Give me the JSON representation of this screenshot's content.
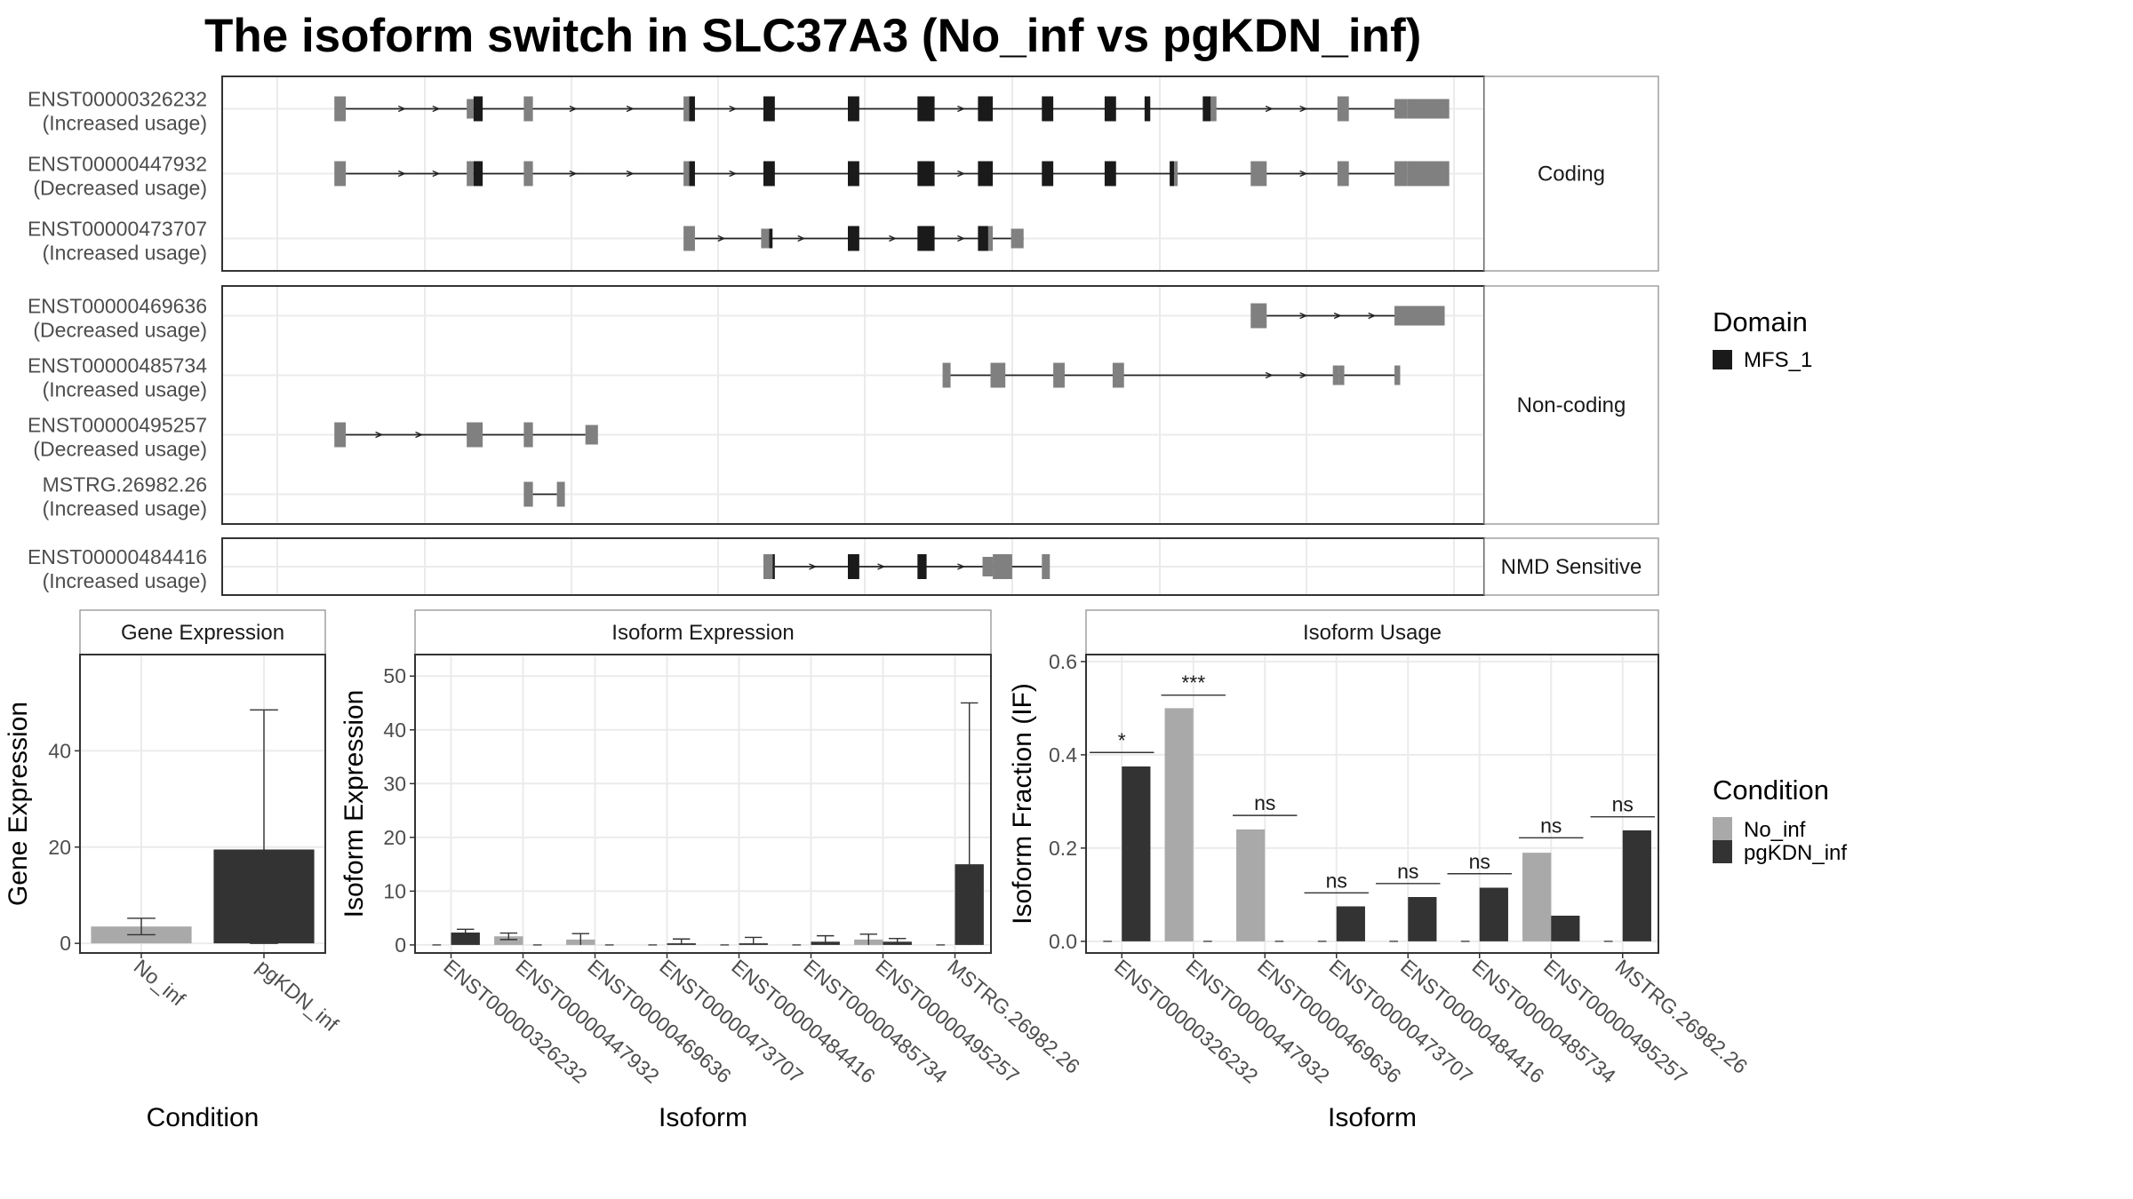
{
  "title": "The isoform switch in SLC37A3 (No_inf vs pgKDN_inf)",
  "colors": {
    "domain_mfs1": "#1a1a1a",
    "non_domain": "#808080",
    "no_inf": "#a9a9a9",
    "pgkdn_inf": "#333333",
    "grid": "#ebebeb",
    "panel_border": "#333333",
    "strip_fill": "#ffffff"
  },
  "structure": {
    "gene_span": [
      0,
      1000
    ],
    "groups": [
      {
        "label": "Coding",
        "isoforms": [
          {
            "name": "ENST00000326232",
            "usage": "(Increased usage)",
            "exons": [
              [
                50,
                60,
                "g"
              ],
              [
                166,
                172,
                "g"
              ],
              [
                172,
                180,
                "d"
              ],
              [
                216,
                224,
                "g"
              ],
              [
                356,
                361,
                "g"
              ],
              [
                361,
                366,
                "d"
              ],
              [
                426,
                436,
                "d"
              ],
              [
                500,
                510,
                "d"
              ],
              [
                561,
                576,
                "d"
              ],
              [
                614,
                627,
                "d"
              ],
              [
                670,
                680,
                "d"
              ],
              [
                725,
                735,
                "d"
              ],
              [
                760,
                765,
                "d"
              ],
              [
                811,
                818,
                "d"
              ],
              [
                818,
                823,
                "g"
              ],
              [
                929,
                939,
                "g"
              ],
              [
                979,
                990,
                "g"
              ],
              [
                990,
                1027,
                "g"
              ]
            ],
            "utr": [
              [
                166,
                172
              ],
              [
                979,
                1027
              ]
            ],
            "line": [
              60,
              990
            ],
            "arrows": [
              110,
              140,
              260,
              310,
              400,
              600,
              870,
              900
            ]
          },
          {
            "name": "ENST00000447932",
            "usage": "(Decreased usage)",
            "exons": [
              [
                50,
                60,
                "g"
              ],
              [
                166,
                172,
                "g"
              ],
              [
                172,
                180,
                "d"
              ],
              [
                216,
                224,
                "g"
              ],
              [
                356,
                361,
                "g"
              ],
              [
                361,
                366,
                "d"
              ],
              [
                426,
                436,
                "d"
              ],
              [
                500,
                510,
                "d"
              ],
              [
                561,
                576,
                "d"
              ],
              [
                614,
                627,
                "d"
              ],
              [
                670,
                680,
                "d"
              ],
              [
                725,
                735,
                "d"
              ],
              [
                782,
                786,
                "d"
              ],
              [
                786,
                789,
                "g"
              ],
              [
                853,
                867,
                "g"
              ],
              [
                929,
                939,
                "g"
              ],
              [
                979,
                990,
                "g"
              ],
              [
                990,
                1027,
                "g"
              ]
            ],
            "utr": [],
            "line": [
              60,
              990
            ],
            "arrows": [
              110,
              140,
              260,
              310,
              400,
              600,
              900
            ]
          },
          {
            "name": "ENST00000473707",
            "usage": "(Increased usage)",
            "exons": [
              [
                356,
                366,
                "g"
              ],
              [
                424,
                431,
                "g"
              ],
              [
                431,
                434,
                "d"
              ],
              [
                500,
                510,
                "d"
              ],
              [
                561,
                576,
                "d"
              ],
              [
                614,
                623,
                "d"
              ],
              [
                623,
                627,
                "g"
              ],
              [
                643,
                646,
                "g"
              ],
              [
                646,
                654,
                "g"
              ]
            ],
            "utr": [
              [
                424,
                434
              ],
              [
                643,
                654
              ]
            ],
            "line": [
              366,
              654
            ],
            "arrows": [
              390,
              460,
              540,
              600
            ]
          }
        ]
      },
      {
        "label": "Non-coding",
        "isoforms": [
          {
            "name": "ENST00000469636",
            "usage": "(Decreased usage)",
            "exons": [
              [
                853,
                867,
                "g"
              ],
              [
                979,
                1023,
                "g"
              ]
            ],
            "utr": [
              [
                979,
                1023
              ]
            ],
            "line": [
              867,
              979
            ],
            "arrows": [
              900,
              930,
              960
            ]
          },
          {
            "name": "ENST00000485734",
            "usage": "(Increased usage)",
            "exons": [
              [
                583,
                590,
                "g"
              ],
              [
                625,
                638,
                "g"
              ],
              [
                680,
                690,
                "g"
              ],
              [
                732,
                742,
                "g"
              ],
              [
                925,
                930,
                "g"
              ],
              [
                930,
                935,
                "g"
              ],
              [
                979,
                984,
                "g"
              ]
            ],
            "utr": [
              [
                925,
                935
              ],
              [
                979,
                984
              ]
            ],
            "line": [
              590,
              979
            ],
            "arrows": [
              870,
              900
            ]
          },
          {
            "name": "ENST00000495257",
            "usage": "(Decreased usage)",
            "exons": [
              [
                50,
                60,
                "g"
              ],
              [
                166,
                180,
                "g"
              ],
              [
                216,
                224,
                "g"
              ],
              [
                270,
                281,
                "g"
              ]
            ],
            "utr": [
              [
                270,
                281
              ]
            ],
            "line": [
              60,
              270
            ],
            "arrows": [
              90,
              125
            ]
          },
          {
            "name": "MSTRG.26982.26",
            "usage": "(Increased usage)",
            "exons": [
              [
                216,
                224,
                "g"
              ],
              [
                245,
                252,
                "g"
              ]
            ],
            "utr": [],
            "line": [
              224,
              245
            ],
            "arrows": []
          }
        ]
      },
      {
        "label": "NMD Sensitive",
        "isoforms": [
          {
            "name": "ENST00000484416",
            "usage": "(Increased usage)",
            "exons": [
              [
                426,
                434,
                "g"
              ],
              [
                434,
                436,
                "d"
              ],
              [
                500,
                510,
                "d"
              ],
              [
                561,
                569,
                "d"
              ],
              [
                618,
                627,
                "g"
              ],
              [
                627,
                644,
                "g"
              ],
              [
                670,
                677,
                "g"
              ]
            ],
            "utr": [
              [
                618,
                627
              ]
            ],
            "line": [
              436,
              670
            ],
            "arrows": [
              470,
              530,
              600
            ]
          }
        ]
      }
    ]
  },
  "legends": {
    "domain": {
      "title": "Domain",
      "items": [
        {
          "label": "MFS_1",
          "color": "#1a1a1a"
        }
      ]
    },
    "condition": {
      "title": "Condition",
      "items": [
        {
          "label": "No_inf",
          "color": "#a9a9a9"
        },
        {
          "label": "pgKDN_inf",
          "color": "#333333"
        }
      ]
    }
  },
  "chart_data": [
    {
      "type": "bar",
      "title": "Gene Expression",
      "xlabel": "Condition",
      "ylabel": "Gene Expression",
      "ylim": [
        -2,
        60
      ],
      "yticks": [
        0,
        20,
        40
      ],
      "categories": [
        "No_inf",
        "pgKDN_inf"
      ],
      "values": [
        3.5,
        19.5
      ],
      "errors": [
        [
          1.8,
          5.2
        ],
        [
          0,
          48.5
        ]
      ]
    },
    {
      "type": "bar",
      "title": "Isoform Expression",
      "xlabel": "Isoform",
      "ylabel": "Isoform Expression",
      "ylim": [
        -1.5,
        54
      ],
      "yticks": [
        0,
        10,
        20,
        30,
        40,
        50
      ],
      "categories": [
        "ENST00000326232",
        "ENST00000447932",
        "ENST00000469636",
        "ENST00000473707",
        "ENST00000484416",
        "ENST00000485734",
        "ENST00000495257",
        "MSTRG.26982.26"
      ],
      "series": [
        {
          "name": "No_inf",
          "values": [
            0,
            1.6,
            1,
            0,
            0,
            0,
            1,
            0
          ],
          "errors": [
            [
              0,
              0
            ],
            [
              1,
              2.2
            ],
            [
              0,
              2.1
            ],
            [
              0,
              0
            ],
            [
              0,
              0
            ],
            [
              0,
              0
            ],
            [
              0,
              2
            ],
            [
              0,
              0
            ]
          ]
        },
        {
          "name": "pgKDN_inf",
          "values": [
            2.3,
            0,
            0,
            0.3,
            0.3,
            0.6,
            0.6,
            15
          ],
          "errors": [
            [
              1.8,
              2.9
            ],
            [
              0,
              0
            ],
            [
              0,
              0
            ],
            [
              0,
              1.1
            ],
            [
              0,
              1.4
            ],
            [
              0,
              1.7
            ],
            [
              0,
              1.2
            ],
            [
              0,
              45
            ]
          ]
        }
      ]
    },
    {
      "type": "bar",
      "title": "Isoform Usage",
      "xlabel": "Isoform",
      "ylabel": "Isoform Fraction (IF)",
      "ylim": [
        -0.025,
        0.615
      ],
      "yticks": [
        "0.0",
        "0.2",
        "0.4",
        "0.6"
      ],
      "categories": [
        "ENST00000326232",
        "ENST00000447932",
        "ENST00000469636",
        "ENST00000473707",
        "ENST00000484416",
        "ENST00000485734",
        "ENST00000495257",
        "MSTRG.26982.26"
      ],
      "series": [
        {
          "name": "No_inf",
          "values": [
            0,
            0.5,
            0.24,
            0,
            0,
            0,
            0.19,
            0
          ]
        },
        {
          "name": "pgKDN_inf",
          "values": [
            0.375,
            0,
            0,
            0.075,
            0.095,
            0.115,
            0.055,
            0.238
          ]
        }
      ],
      "significance": [
        "*",
        "***",
        "ns",
        "ns",
        "ns",
        "ns",
        "ns",
        "ns"
      ],
      "significance_y": [
        0.405,
        0.528,
        0.27,
        0.104,
        0.124,
        0.145,
        0.222,
        0.267
      ]
    }
  ]
}
